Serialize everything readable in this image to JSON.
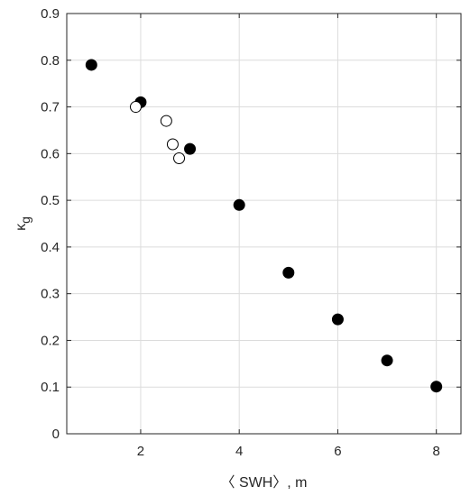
{
  "chart_data": {
    "type": "scatter",
    "title": "",
    "xlabel": "〈 SWH〉, m",
    "ylabel_symbol": "κ",
    "ylabel_subscript": "g",
    "xlim": [
      0.5,
      8.5
    ],
    "ylim": [
      0,
      0.9
    ],
    "xticks": [
      2,
      4,
      6,
      8
    ],
    "yticks": [
      0,
      0.1,
      0.2,
      0.3,
      0.4,
      0.5,
      0.6,
      0.7,
      0.8,
      0.9
    ],
    "xtick_labels": [
      "2",
      "4",
      "6",
      "8"
    ],
    "ytick_labels": [
      "0",
      "0.1",
      "0.2",
      "0.3",
      "0.4",
      "0.5",
      "0.6",
      "0.7",
      "0.8",
      "0.9"
    ],
    "grid": true,
    "series": [
      {
        "marker": "filled-circle",
        "color": "#000000",
        "points": [
          {
            "x": 1.0,
            "y": 0.79
          },
          {
            "x": 2.0,
            "y": 0.71
          },
          {
            "x": 3.0,
            "y": 0.61
          },
          {
            "x": 4.0,
            "y": 0.49
          },
          {
            "x": 5.0,
            "y": 0.345
          },
          {
            "x": 6.0,
            "y": 0.245
          },
          {
            "x": 7.0,
            "y": 0.157
          },
          {
            "x": 8.0,
            "y": 0.101
          }
        ]
      },
      {
        "marker": "open-circle",
        "color": "#000000",
        "points": [
          {
            "x": 1.9,
            "y": 0.7
          },
          {
            "x": 2.52,
            "y": 0.67
          },
          {
            "x": 2.65,
            "y": 0.62
          },
          {
            "x": 2.78,
            "y": 0.59
          }
        ]
      }
    ]
  }
}
